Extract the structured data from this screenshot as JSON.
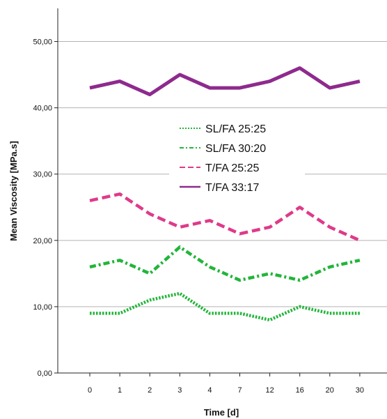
{
  "chart_data": {
    "type": "line",
    "title": "",
    "xlabel": "Time [d]",
    "ylabel": "Mean Viscosity [MPa.s]",
    "categories": [
      "0",
      "1",
      "2",
      "3",
      "4",
      "7",
      "12",
      "16",
      "20",
      "30"
    ],
    "ylim": [
      0,
      55
    ],
    "yticks": [
      "0,00",
      "10,00",
      "20,00",
      "30,00",
      "40,00",
      "50,00"
    ],
    "grid": "horizontal",
    "legend_position": "center",
    "series": [
      {
        "name": "SL/FA 25:25",
        "values": [
          9,
          9,
          11,
          12,
          9,
          9,
          8,
          10,
          9,
          9
        ],
        "color": "#22b53a",
        "style": "dotted"
      },
      {
        "name": "SL/FA 30:20",
        "values": [
          16,
          17,
          15,
          19,
          16,
          14,
          15,
          14,
          16,
          17
        ],
        "color": "#22b53a",
        "style": "dash-dot"
      },
      {
        "name": "T/FA 25:25",
        "values": [
          26,
          27,
          24,
          22,
          23,
          21,
          22,
          25,
          22,
          20
        ],
        "color": "#df3a8a",
        "style": "dashed"
      },
      {
        "name": "T/FA 33:17",
        "values": [
          43,
          44,
          42,
          45,
          43,
          43,
          44,
          46,
          43,
          44
        ],
        "color": "#8e2a8e",
        "style": "solid"
      }
    ]
  }
}
